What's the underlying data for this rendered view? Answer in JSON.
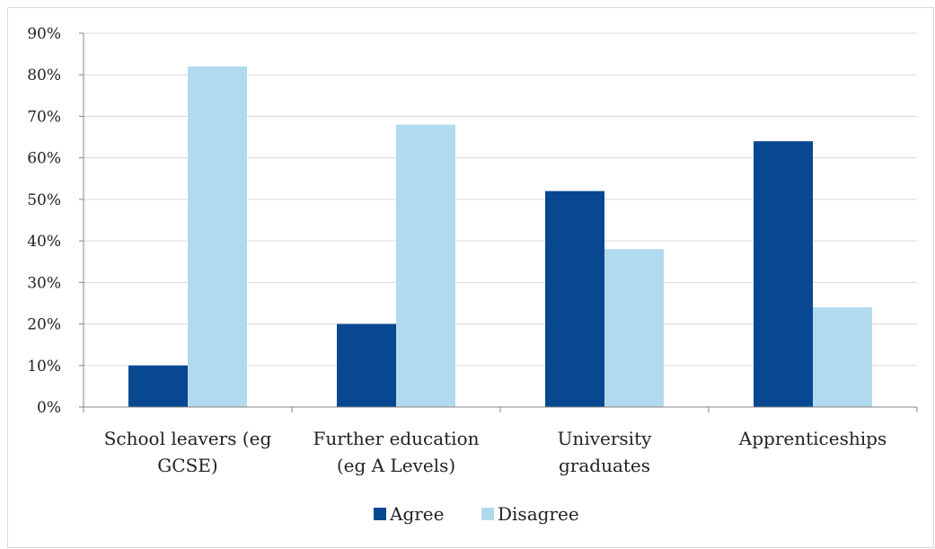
{
  "chart_data": {
    "type": "bar",
    "categories": [
      [
        "School leavers (eg",
        "GCSE)"
      ],
      [
        "Further education",
        "(eg A Levels)"
      ],
      [
        "University",
        "graduates"
      ],
      [
        "Apprenticeships"
      ]
    ],
    "series": [
      {
        "name": "Agree",
        "color": "#074891",
        "values": [
          10,
          20,
          52,
          64
        ]
      },
      {
        "name": "Disagree",
        "color": "#b1daee",
        "values": [
          82,
          68,
          38,
          24
        ]
      }
    ],
    "yticks": [
      "0%",
      "10%",
      "20%",
      "30%",
      "40%",
      "50%",
      "60%",
      "70%",
      "80%",
      "90%"
    ],
    "ylim": [
      0,
      90
    ],
    "grid": true,
    "legend_position": "bottom",
    "title": "",
    "xlabel": "",
    "ylabel": ""
  }
}
